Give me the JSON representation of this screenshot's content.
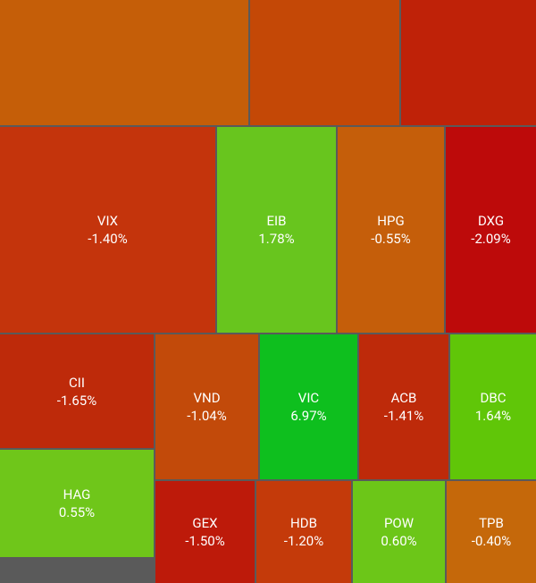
{
  "tiles": [
    {
      "symbol": "VIX",
      "change": "-1.40%"
    },
    {
      "symbol": "EIB",
      "change": "1.78%"
    },
    {
      "symbol": "HPG",
      "change": "-0.55%"
    },
    {
      "symbol": "DXG",
      "change": "-2.09%"
    },
    {
      "symbol": "CII",
      "change": "-1.65%"
    },
    {
      "symbol": "VND",
      "change": "-1.04%"
    },
    {
      "symbol": "VIC",
      "change": "6.97%"
    },
    {
      "symbol": "ACB",
      "change": "-1.41%"
    },
    {
      "symbol": "DBC",
      "change": "1.64%"
    },
    {
      "symbol": "HAG",
      "change": "0.55%"
    },
    {
      "symbol": "GEX",
      "change": "-1.50%"
    },
    {
      "symbol": "HDB",
      "change": "-1.20%"
    },
    {
      "symbol": "POW",
      "change": "0.60%"
    },
    {
      "symbol": "TPB",
      "change": "-0.40%"
    }
  ]
}
